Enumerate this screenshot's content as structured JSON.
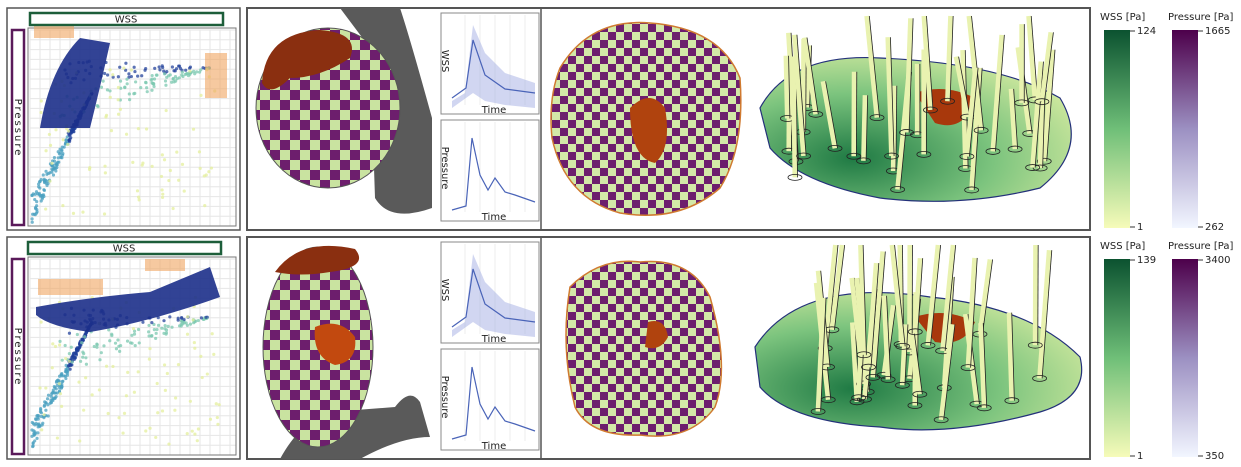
{
  "rows": [
    {
      "scatter": {
        "x_label": "WSS",
        "y_label": "Pressure"
      },
      "plots": [
        {
          "y_label": "WSS",
          "x_label": "Time"
        },
        {
          "y_label": "Pressure",
          "x_label": "Time"
        }
      ],
      "colorbars": [
        {
          "title": "WSS [Pa]",
          "max": 124,
          "min": 1
        },
        {
          "title": "Pressure [Pa]",
          "max": 1665,
          "min": 262
        }
      ]
    },
    {
      "scatter": {
        "x_label": "WSS",
        "y_label": "Pressure"
      },
      "plots": [
        {
          "y_label": "WSS",
          "x_label": "Time"
        },
        {
          "y_label": "Pressure",
          "x_label": "Time"
        }
      ],
      "colorbars": [
        {
          "title": "WSS [Pa]",
          "max": 139,
          "min": 1
        },
        {
          "title": "Pressure [Pa]",
          "max": 3400,
          "min": 350
        }
      ]
    }
  ]
}
